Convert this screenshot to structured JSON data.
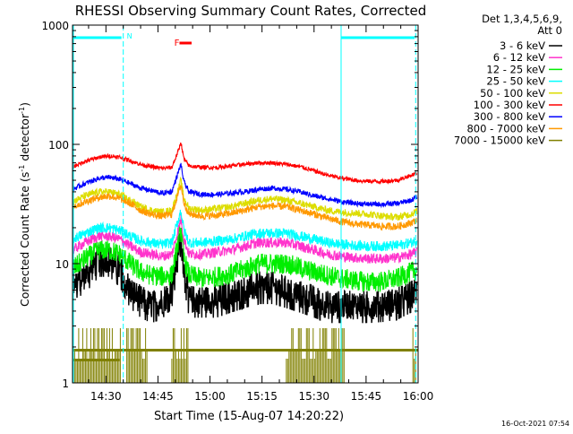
{
  "chart_data": {
    "type": "line",
    "title": "RHESSI Observing Summary Count Rates, Corrected",
    "xlabel": "Start Time (15-Aug-07 14:20:22)",
    "ylabel_main": "Corrected Count Rate (s",
    "ylabel_sup1": "-1",
    "ylabel_mid": " detector",
    "ylabel_sup2": "-1",
    "ylabel_end": ")",
    "y_scale": "log",
    "ylim": [
      1,
      1000
    ],
    "y_ticks": [
      {
        "value": 1,
        "label": "1"
      },
      {
        "value": 10,
        "label": "10"
      },
      {
        "value": 100,
        "label": "100"
      },
      {
        "value": 1000,
        "label": "1000"
      }
    ],
    "x_range_minutes": [
      860.37,
      960
    ],
    "x_ticks": [
      {
        "minutes": 870,
        "label": "14:30"
      },
      {
        "minutes": 885,
        "label": "14:45"
      },
      {
        "minutes": 900,
        "label": "15:00"
      },
      {
        "minutes": 915,
        "label": "15:15"
      },
      {
        "minutes": 930,
        "label": "15:30"
      },
      {
        "minutes": 945,
        "label": "15:45"
      },
      {
        "minutes": 960,
        "label": "16:00"
      }
    ],
    "legend_header": [
      "Det 1,3,4,5,6,9,",
      "Att 0"
    ],
    "legend_placement": "right",
    "series": [
      {
        "name": "3 - 6 keV",
        "color": "#000000",
        "keyframes": [
          [
            860.4,
            7
          ],
          [
            864,
            8
          ],
          [
            868,
            11
          ],
          [
            871,
            11
          ],
          [
            874,
            9
          ],
          [
            877,
            6
          ],
          [
            880,
            5
          ],
          [
            883,
            4.5
          ],
          [
            886,
            4.8
          ],
          [
            889,
            6
          ],
          [
            891,
            14
          ],
          [
            891.6,
            17
          ],
          [
            892.5,
            9
          ],
          [
            894,
            5
          ],
          [
            898,
            5
          ],
          [
            902,
            5
          ],
          [
            906,
            5.5
          ],
          [
            910,
            6
          ],
          [
            914,
            6.5
          ],
          [
            918,
            6.5
          ],
          [
            922,
            6
          ],
          [
            926,
            5.5
          ],
          [
            930,
            5
          ],
          [
            934,
            4.5
          ],
          [
            938,
            4.5
          ],
          [
            942,
            4.5
          ],
          [
            946,
            4.5
          ],
          [
            950,
            4.6
          ],
          [
            954,
            4.8
          ],
          [
            958,
            5.5
          ],
          [
            960,
            6
          ]
        ]
      },
      {
        "name": "6 - 12 keV",
        "color": "#ff33cc",
        "keyframes": [
          [
            860.4,
            13
          ],
          [
            864,
            15
          ],
          [
            868,
            17
          ],
          [
            871,
            17
          ],
          [
            874,
            16
          ],
          [
            877,
            14
          ],
          [
            880,
            12.5
          ],
          [
            883,
            12
          ],
          [
            886,
            11.5
          ],
          [
            889,
            12
          ],
          [
            891,
            20
          ],
          [
            891.6,
            24
          ],
          [
            892.5,
            16
          ],
          [
            894,
            12
          ],
          [
            898,
            12
          ],
          [
            902,
            12.5
          ],
          [
            906,
            13
          ],
          [
            910,
            14
          ],
          [
            914,
            15
          ],
          [
            918,
            15
          ],
          [
            922,
            15
          ],
          [
            926,
            14
          ],
          [
            930,
            13
          ],
          [
            934,
            12
          ],
          [
            938,
            11.5
          ],
          [
            942,
            11.2
          ],
          [
            946,
            11
          ],
          [
            950,
            11
          ],
          [
            954,
            11.2
          ],
          [
            958,
            12
          ],
          [
            960,
            12.5
          ]
        ]
      },
      {
        "name": "12 - 25 keV",
        "color": "#00ee00",
        "keyframes": [
          [
            860.4,
            9
          ],
          [
            864,
            11
          ],
          [
            868,
            13
          ],
          [
            871,
            13
          ],
          [
            874,
            12
          ],
          [
            877,
            10
          ],
          [
            880,
            8.5
          ],
          [
            883,
            8
          ],
          [
            886,
            7.8
          ],
          [
            889,
            8
          ],
          [
            891,
            16
          ],
          [
            891.6,
            20
          ],
          [
            892.5,
            11
          ],
          [
            894,
            8
          ],
          [
            898,
            7.5
          ],
          [
            902,
            7.8
          ],
          [
            906,
            8.2
          ],
          [
            910,
            9
          ],
          [
            914,
            10
          ],
          [
            918,
            10
          ],
          [
            922,
            10
          ],
          [
            926,
            9.2
          ],
          [
            930,
            8.5
          ],
          [
            934,
            8
          ],
          [
            938,
            7.5
          ],
          [
            942,
            7.2
          ],
          [
            946,
            7
          ],
          [
            950,
            7.1
          ],
          [
            954,
            7.5
          ],
          [
            958,
            8.5
          ],
          [
            960,
            9
          ]
        ]
      },
      {
        "name": "25 - 50 keV",
        "color": "#00ffff",
        "keyframes": [
          [
            860.4,
            16
          ],
          [
            864,
            18
          ],
          [
            868,
            20
          ],
          [
            871,
            20
          ],
          [
            874,
            19
          ],
          [
            877,
            17
          ],
          [
            880,
            15.5
          ],
          [
            883,
            15
          ],
          [
            886,
            14.5
          ],
          [
            889,
            15
          ],
          [
            891,
            24
          ],
          [
            891.6,
            28
          ],
          [
            892.5,
            19
          ],
          [
            894,
            15
          ],
          [
            898,
            15
          ],
          [
            902,
            15.5
          ],
          [
            906,
            16
          ],
          [
            910,
            17
          ],
          [
            914,
            18
          ],
          [
            918,
            18
          ],
          [
            922,
            18
          ],
          [
            926,
            17
          ],
          [
            930,
            16
          ],
          [
            934,
            15
          ],
          [
            938,
            14.5
          ],
          [
            942,
            14.2
          ],
          [
            946,
            14
          ],
          [
            950,
            14
          ],
          [
            954,
            14.2
          ],
          [
            958,
            15
          ],
          [
            960,
            16
          ]
        ]
      },
      {
        "name": "50 - 100 keV",
        "color": "#dddd00",
        "keyframes": [
          [
            860.4,
            33
          ],
          [
            864,
            37
          ],
          [
            868,
            40
          ],
          [
            871,
            40
          ],
          [
            874,
            38
          ],
          [
            877,
            34
          ],
          [
            880,
            30
          ],
          [
            883,
            28
          ],
          [
            886,
            27
          ],
          [
            889,
            28
          ],
          [
            891,
            43
          ],
          [
            891.6,
            50
          ],
          [
            892.5,
            35
          ],
          [
            894,
            29
          ],
          [
            898,
            28
          ],
          [
            902,
            29
          ],
          [
            906,
            30
          ],
          [
            910,
            32
          ],
          [
            914,
            34
          ],
          [
            918,
            35
          ],
          [
            922,
            34
          ],
          [
            926,
            32
          ],
          [
            930,
            30
          ],
          [
            934,
            28
          ],
          [
            938,
            27
          ],
          [
            942,
            26.5
          ],
          [
            946,
            26
          ],
          [
            950,
            25
          ],
          [
            954,
            24.5
          ],
          [
            958,
            26
          ],
          [
            960,
            28
          ]
        ]
      },
      {
        "name": "100 - 300 keV",
        "color": "#ff0000",
        "keyframes": [
          [
            860.4,
            65
          ],
          [
            864,
            72
          ],
          [
            868,
            78
          ],
          [
            871,
            80
          ],
          [
            874,
            78
          ],
          [
            877,
            73
          ],
          [
            880,
            68
          ],
          [
            883,
            65
          ],
          [
            886,
            63
          ],
          [
            889,
            64
          ],
          [
            891,
            90
          ],
          [
            891.6,
            105
          ],
          [
            892.5,
            75
          ],
          [
            894,
            66
          ],
          [
            898,
            64
          ],
          [
            902,
            64
          ],
          [
            906,
            66
          ],
          [
            910,
            68
          ],
          [
            914,
            70
          ],
          [
            918,
            70
          ],
          [
            922,
            68
          ],
          [
            926,
            65
          ],
          [
            930,
            60
          ],
          [
            934,
            55
          ],
          [
            938,
            52
          ],
          [
            942,
            50
          ],
          [
            946,
            49
          ],
          [
            950,
            49
          ],
          [
            954,
            50
          ],
          [
            958,
            55
          ],
          [
            960,
            58
          ]
        ]
      },
      {
        "name": "300 - 800 keV",
        "color": "#0000ff",
        "keyframes": [
          [
            860.4,
            42
          ],
          [
            864,
            47
          ],
          [
            868,
            52
          ],
          [
            871,
            53
          ],
          [
            874,
            51
          ],
          [
            877,
            47
          ],
          [
            880,
            43
          ],
          [
            883,
            41
          ],
          [
            886,
            39
          ],
          [
            889,
            40
          ],
          [
            891,
            60
          ],
          [
            891.6,
            68
          ],
          [
            892.5,
            48
          ],
          [
            894,
            40
          ],
          [
            898,
            38
          ],
          [
            902,
            38
          ],
          [
            906,
            39
          ],
          [
            910,
            40
          ],
          [
            914,
            42
          ],
          [
            918,
            43
          ],
          [
            922,
            42
          ],
          [
            926,
            40
          ],
          [
            930,
            37
          ],
          [
            934,
            35
          ],
          [
            938,
            33
          ],
          [
            942,
            32
          ],
          [
            946,
            31.5
          ],
          [
            950,
            31.5
          ],
          [
            954,
            32
          ],
          [
            958,
            34
          ],
          [
            960,
            37
          ]
        ]
      },
      {
        "name": "800 - 7000 keV",
        "color": "#ff9900",
        "keyframes": [
          [
            860.4,
            30
          ],
          [
            864,
            33
          ],
          [
            868,
            36
          ],
          [
            871,
            37
          ],
          [
            874,
            35
          ],
          [
            877,
            32
          ],
          [
            880,
            28
          ],
          [
            883,
            26
          ],
          [
            886,
            25
          ],
          [
            889,
            26
          ],
          [
            891,
            40
          ],
          [
            891.6,
            46
          ],
          [
            892.5,
            32
          ],
          [
            894,
            26
          ],
          [
            898,
            25
          ],
          [
            902,
            25.5
          ],
          [
            906,
            26.5
          ],
          [
            910,
            28
          ],
          [
            914,
            30
          ],
          [
            918,
            30.5
          ],
          [
            922,
            30
          ],
          [
            926,
            28
          ],
          [
            930,
            26
          ],
          [
            934,
            24
          ],
          [
            938,
            22.5
          ],
          [
            942,
            21.5
          ],
          [
            946,
            21
          ],
          [
            950,
            20.5
          ],
          [
            954,
            20.5
          ],
          [
            958,
            22
          ],
          [
            960,
            23.5
          ]
        ]
      },
      {
        "name": "7000 - 15000 keV",
        "color": "#808000",
        "keyframes": []
      }
    ],
    "annotations": {
      "night_label": "N",
      "flare_label": "F",
      "timestamp": "16-Oct-2021 07:54"
    }
  }
}
